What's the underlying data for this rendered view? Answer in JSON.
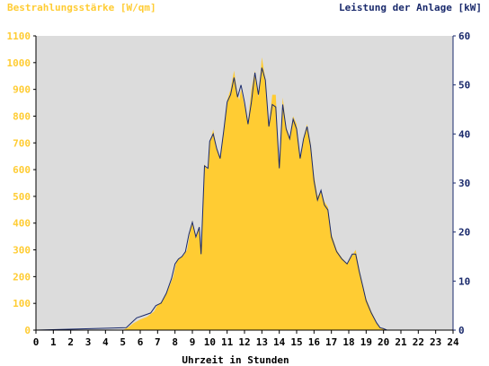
{
  "chart_data": {
    "type": "area",
    "left_axis": {
      "label": "Bestrahlungsstärke [W/qm]",
      "ylim": [
        0,
        1100
      ],
      "ticks": [
        0,
        100,
        200,
        300,
        400,
        500,
        600,
        700,
        800,
        900,
        1000,
        1100
      ],
      "color": "#ffcc33"
    },
    "right_axis": {
      "label": "Leistung der Anlage [kW]",
      "ylim": [
        0,
        60
      ],
      "ticks": [
        0,
        10,
        20,
        30,
        40,
        50,
        60
      ],
      "color": "#1a2a6c"
    },
    "x_axis": {
      "label": "Uhrzeit in Stunden",
      "xlim": [
        0,
        24
      ],
      "ticks": [
        0,
        1,
        2,
        3,
        4,
        5,
        6,
        7,
        8,
        9,
        10,
        11,
        12,
        13,
        14,
        15,
        16,
        17,
        18,
        19,
        20,
        21,
        22,
        23,
        24
      ]
    },
    "grid": false,
    "plot_background": "#dcdcdc",
    "series": [
      {
        "axis": "left",
        "color": "#ffcc33",
        "x": [
          0,
          5.0,
          5.3,
          5.6,
          6.0,
          6.4,
          6.8,
          7.0,
          7.3,
          7.6,
          7.9,
          8.1,
          8.3,
          8.5,
          8.7,
          8.9,
          9.0,
          9.2,
          9.4,
          9.5,
          9.7,
          9.9,
          10.0,
          10.2,
          10.4,
          10.6,
          10.8,
          11.0,
          11.2,
          11.4,
          11.6,
          11.7,
          11.8,
          12.0,
          12.2,
          12.4,
          12.6,
          12.8,
          13.0,
          13.2,
          13.4,
          13.6,
          13.8,
          14.0,
          14.2,
          14.4,
          14.6,
          14.8,
          15.0,
          15.2,
          15.4,
          15.6,
          15.8,
          16.0,
          16.2,
          16.4,
          16.6,
          16.8,
          17.0,
          17.3,
          17.6,
          17.9,
          18.2,
          18.4,
          18.6,
          18.8,
          19.0,
          19.3,
          19.6,
          19.8,
          20.0,
          20.3,
          24
        ],
        "values": [
          0,
          0,
          10,
          25,
          40,
          50,
          70,
          95,
          110,
          150,
          200,
          260,
          270,
          280,
          300,
          380,
          410,
          340,
          390,
          280,
          620,
          600,
          700,
          750,
          680,
          640,
          740,
          860,
          900,
          970,
          880,
          860,
          900,
          840,
          780,
          900,
          970,
          870,
          1020,
          940,
          760,
          880,
          880,
          600,
          870,
          760,
          720,
          800,
          770,
          640,
          720,
          770,
          700,
          580,
          500,
          520,
          480,
          460,
          360,
          300,
          270,
          250,
          280,
          300,
          230,
          170,
          120,
          70,
          30,
          10,
          5,
          0,
          0
        ]
      },
      {
        "axis": "right",
        "color": "#1a2a6c",
        "x": [
          0,
          5.2,
          5.5,
          5.8,
          6.2,
          6.6,
          6.9,
          7.2,
          7.5,
          7.8,
          8.0,
          8.2,
          8.4,
          8.6,
          8.8,
          9.0,
          9.2,
          9.4,
          9.5,
          9.7,
          9.9,
          10.0,
          10.2,
          10.4,
          10.6,
          10.8,
          11.0,
          11.2,
          11.4,
          11.6,
          11.8,
          12.0,
          12.2,
          12.4,
          12.6,
          12.8,
          13.0,
          13.2,
          13.4,
          13.6,
          13.8,
          14.0,
          14.2,
          14.4,
          14.6,
          14.8,
          15.0,
          15.2,
          15.4,
          15.6,
          15.8,
          16.0,
          16.2,
          16.4,
          16.6,
          16.8,
          17.0,
          17.3,
          17.6,
          17.9,
          18.2,
          18.4,
          18.6,
          18.8,
          19.0,
          19.3,
          19.6,
          19.8,
          20.0,
          20.2,
          24
        ],
        "values": [
          0,
          0.5,
          1.5,
          2.5,
          3.0,
          3.5,
          5.0,
          5.5,
          7.5,
          10.5,
          13.5,
          14.5,
          15.0,
          16.0,
          19.5,
          22.0,
          19.0,
          21.0,
          15.5,
          33.5,
          33.0,
          38.5,
          40.0,
          37.0,
          35.0,
          40.5,
          46.5,
          48.0,
          51.5,
          47.5,
          50.0,
          46.5,
          42.0,
          46.5,
          52.5,
          48.0,
          53.5,
          51.0,
          41.5,
          46.0,
          45.5,
          33.0,
          46.0,
          41.0,
          39.0,
          43.0,
          41.0,
          35.0,
          39.0,
          41.5,
          37.5,
          30.5,
          26.5,
          28.5,
          25.5,
          24.5,
          19.0,
          16.0,
          14.5,
          13.5,
          15.5,
          15.5,
          12.0,
          9.0,
          6.0,
          3.5,
          1.5,
          0.5,
          0.3,
          0,
          0
        ]
      }
    ]
  }
}
